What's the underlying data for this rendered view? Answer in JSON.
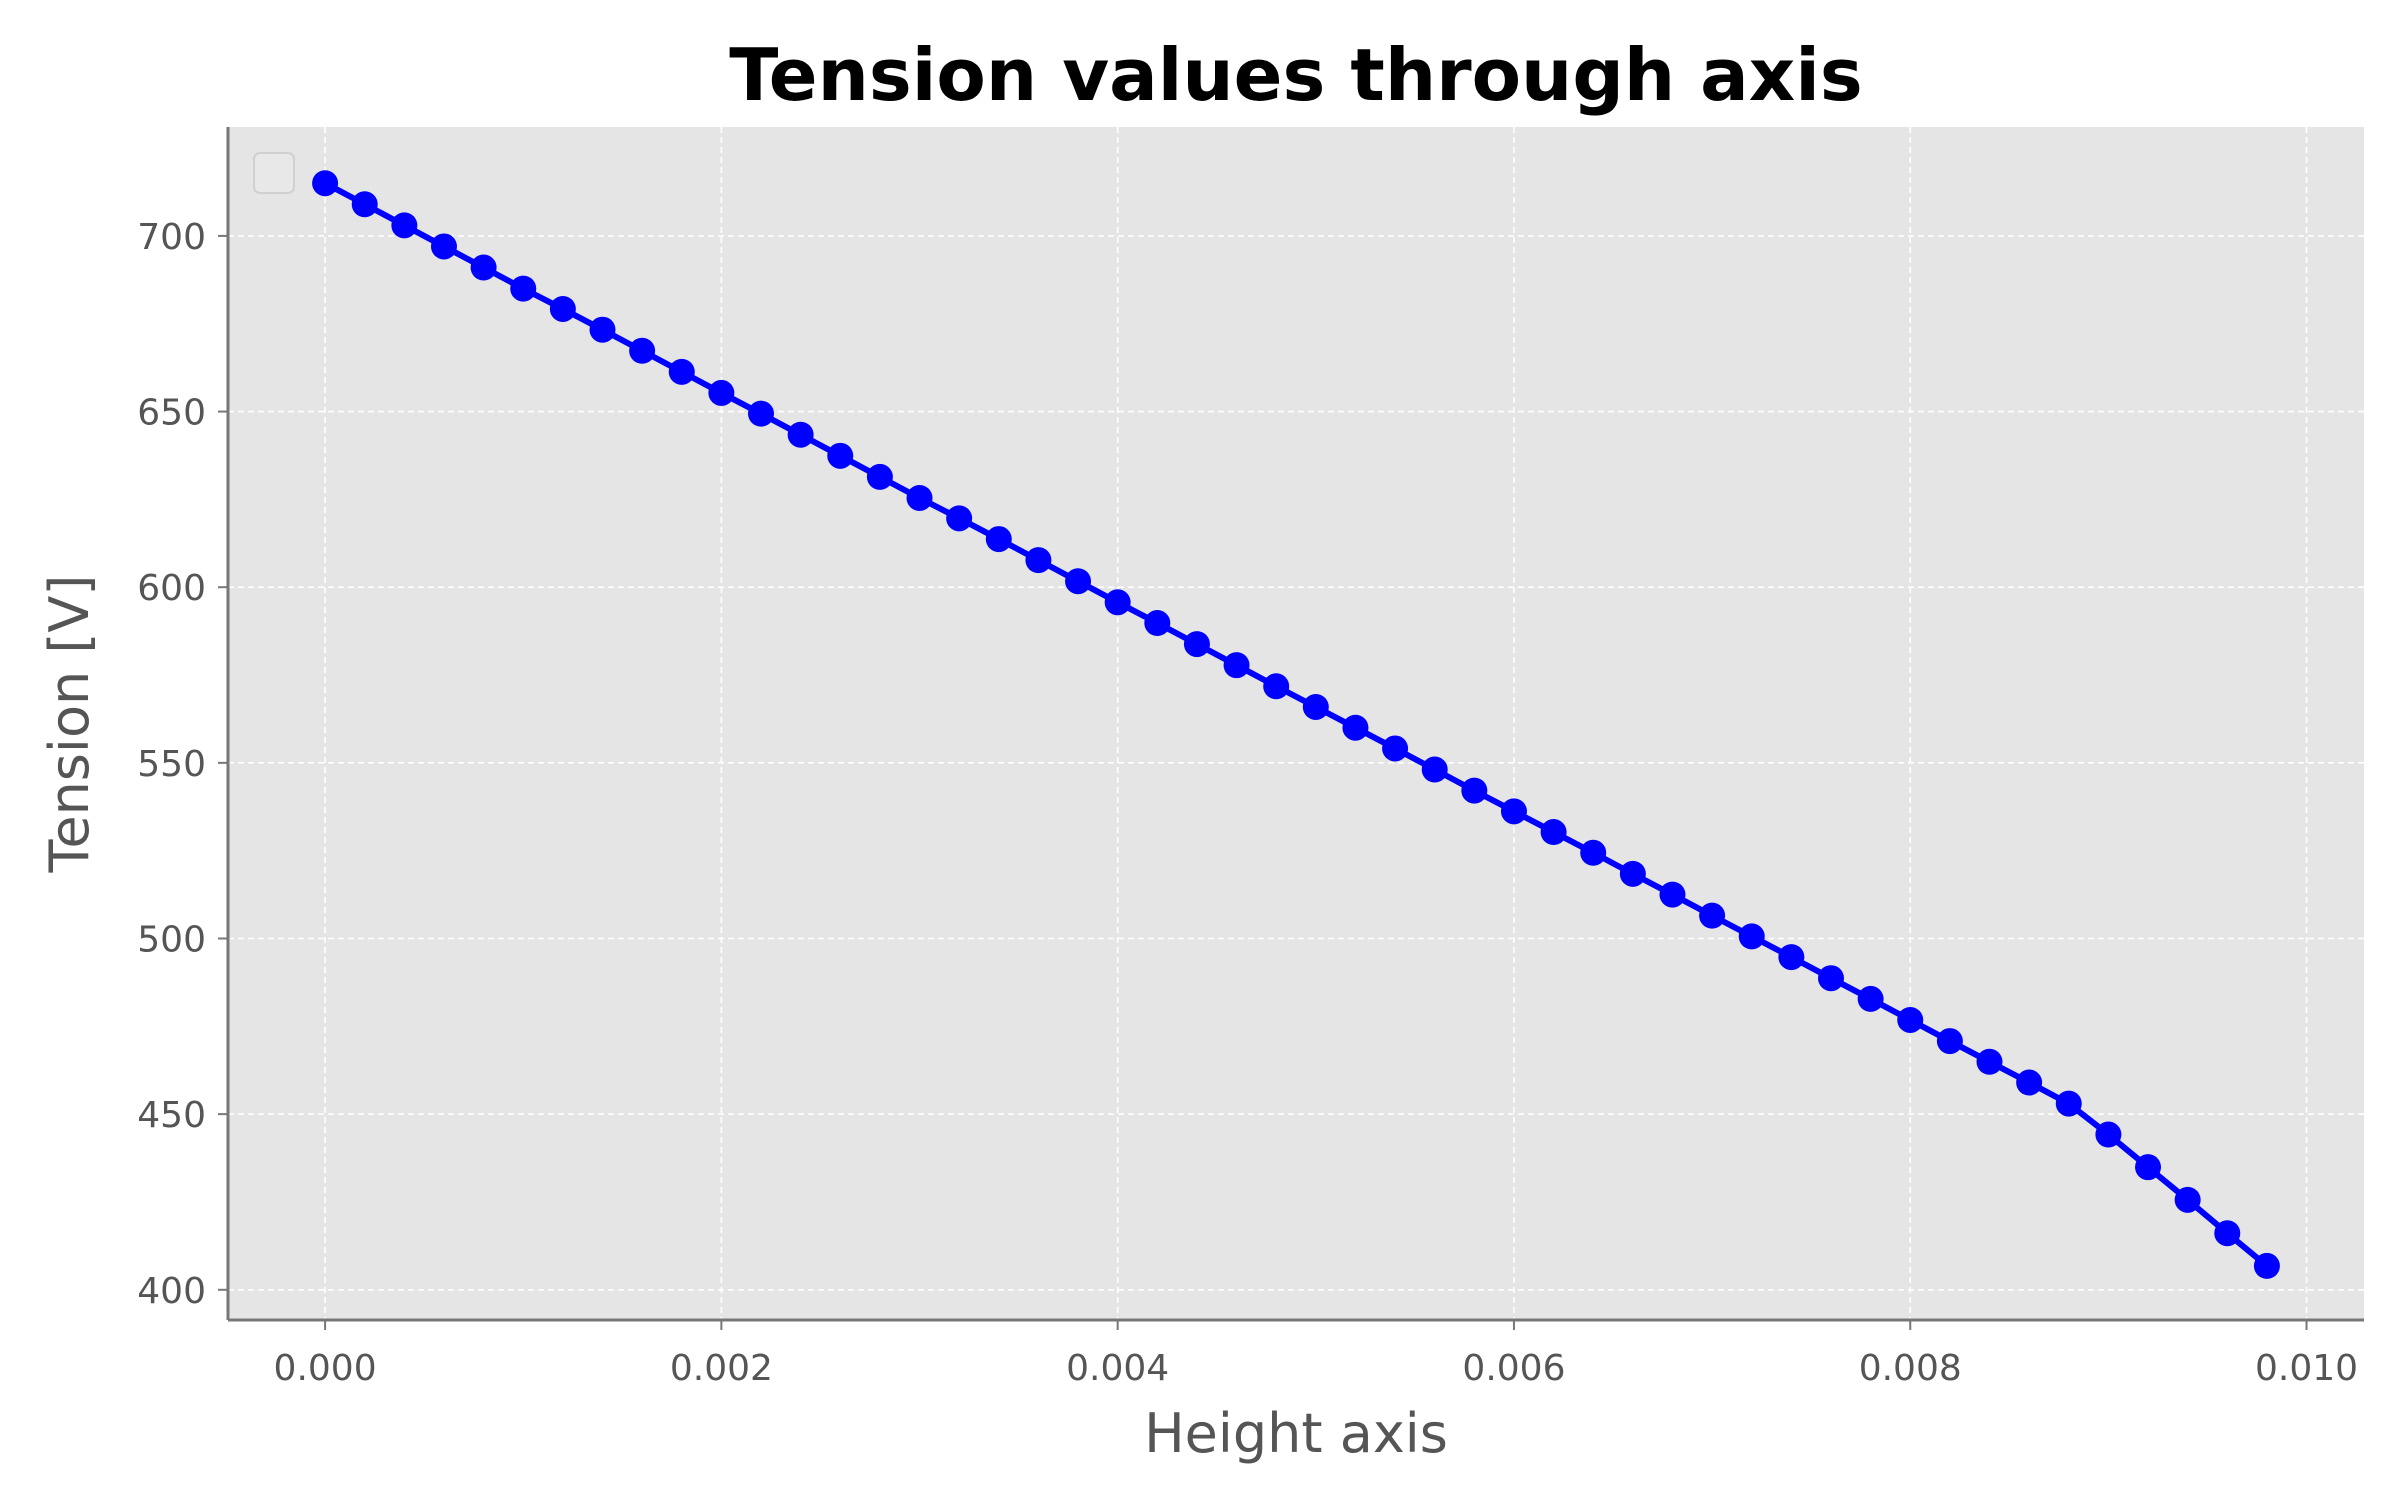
{
  "chart_data": {
    "type": "line",
    "title": "Tension values through axis",
    "xlabel": "Height axis",
    "ylabel": "Tension [V]",
    "xlim": [
      -0.00049,
      0.01029
    ],
    "ylim": [
      391.4,
      731.0
    ],
    "xticks": [
      0.0,
      0.002,
      0.004,
      0.006,
      0.008,
      0.01
    ],
    "xtick_labels": [
      "0.000",
      "0.002",
      "0.004",
      "0.006",
      "0.008",
      "0.010"
    ],
    "yticks": [
      400,
      450,
      500,
      550,
      600,
      650,
      700
    ],
    "ytick_labels": [
      "400",
      "450",
      "500",
      "550",
      "600",
      "650",
      "700"
    ],
    "grid": true,
    "legend": "top-left (empty)",
    "colors": {
      "series": "#0000ff",
      "plot_background": "#e5e5e5",
      "grid": "#ffffff",
      "spine": "#777777"
    },
    "series": [
      {
        "color": "#0000ff",
        "marker": "circle",
        "x": [
          0.0,
          0.0002,
          0.0004,
          0.0006,
          0.0008,
          0.001,
          0.0012,
          0.0014,
          0.0016,
          0.0018,
          0.002,
          0.0022,
          0.0024,
          0.0026,
          0.0028,
          0.003,
          0.0032,
          0.0034,
          0.0036,
          0.0038,
          0.004,
          0.0042,
          0.0044,
          0.0046,
          0.0048,
          0.005,
          0.0052,
          0.0054,
          0.0056,
          0.0058,
          0.006,
          0.0062,
          0.0064,
          0.0066,
          0.0068,
          0.007,
          0.0072,
          0.0074,
          0.0076,
          0.0078,
          0.008,
          0.0082,
          0.0084,
          0.0086,
          0.0088,
          0.009,
          0.0092,
          0.0094,
          0.0096,
          0.0098
        ],
        "y": [
          715.0,
          709.0,
          703.0,
          697.0,
          691.0,
          685.0,
          679.2,
          673.3,
          667.3,
          661.3,
          655.3,
          649.4,
          643.4,
          637.4,
          631.4,
          625.4,
          619.6,
          613.7,
          607.7,
          601.7,
          595.7,
          589.8,
          583.8,
          577.8,
          571.8,
          565.9,
          560.0,
          554.1,
          548.1,
          542.1,
          536.2,
          530.3,
          524.4,
          518.4,
          512.5,
          506.5,
          500.6,
          494.7,
          488.7,
          482.8,
          476.8,
          470.8,
          464.9,
          459.0,
          453.0,
          444.2,
          434.9,
          425.6,
          416.1,
          406.8
        ]
      }
    ]
  }
}
